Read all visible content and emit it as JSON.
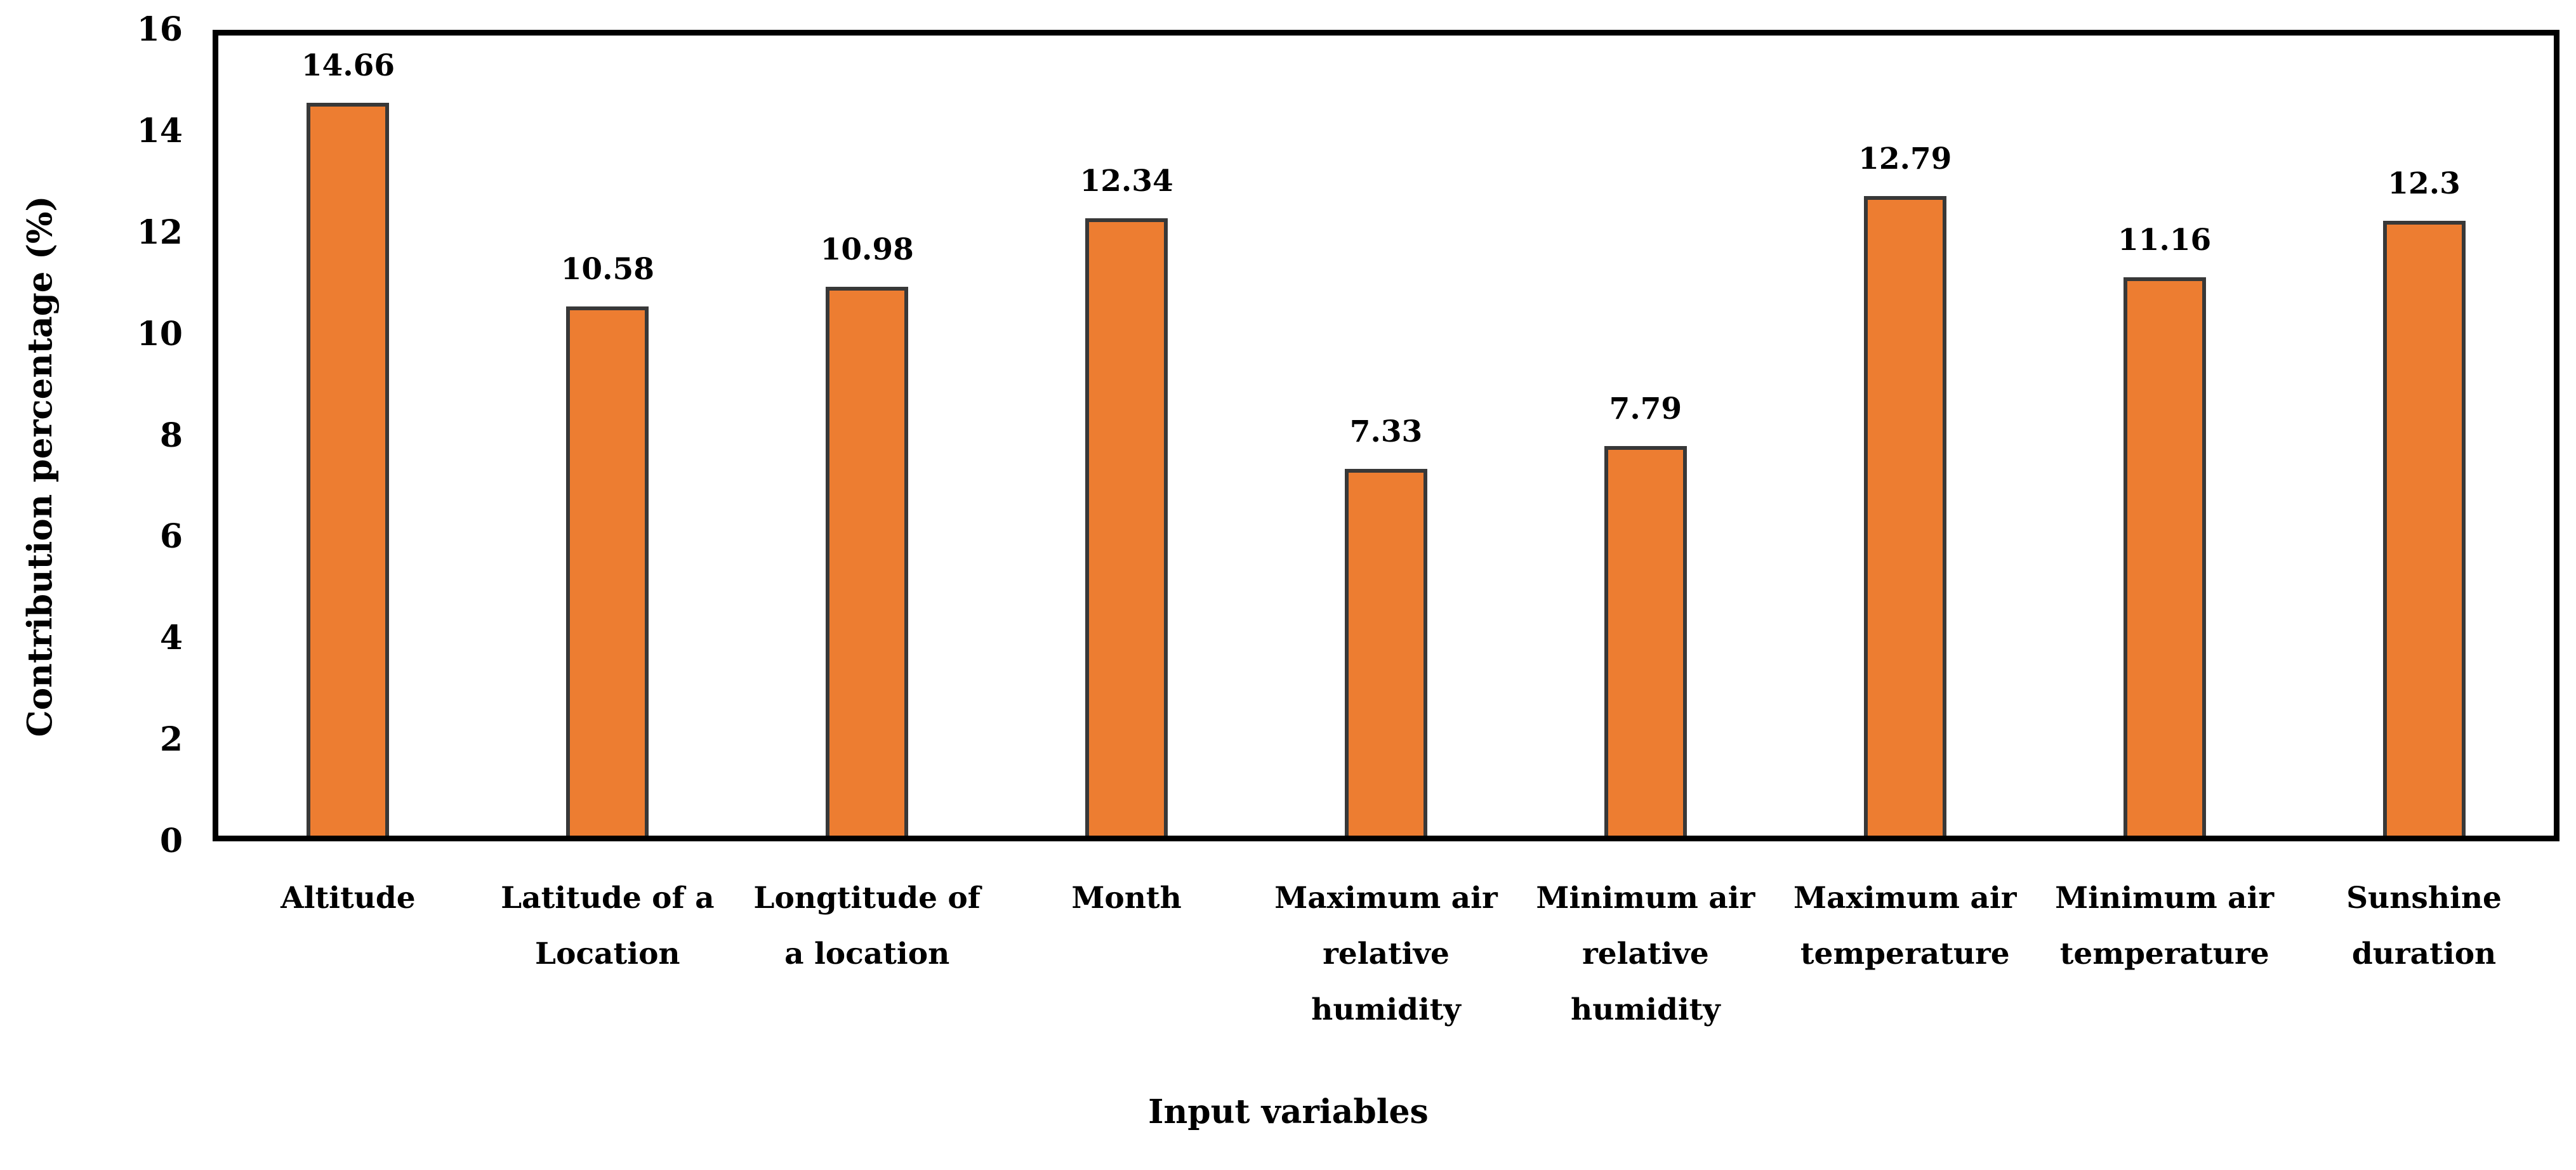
{
  "figure": {
    "background": "#ffffff"
  },
  "chart_data": {
    "type": "bar",
    "title": "",
    "xlabel": "Input variables",
    "ylabel": "Contribution percentage (%)",
    "categories": [
      "Altitude",
      "Latitude of a\nLocation",
      "Longtitude of\na location",
      "Month",
      "Maximum air\nrelative\nhumidity",
      "Minimum air\nrelative\nhumidity",
      "Maximum air\ntemperature",
      "Minimum air\ntemperature",
      "Sunshine\nduration"
    ],
    "values": [
      14.66,
      10.58,
      10.98,
      12.34,
      7.33,
      7.79,
      12.79,
      11.16,
      12.3
    ],
    "value_labels": [
      "14.66",
      "10.58",
      "10.98",
      "12.34",
      "7.33",
      "7.79",
      "12.79",
      "11.16",
      "12.3"
    ],
    "ylim": [
      0,
      16
    ],
    "yticks": [
      "0",
      "2",
      "4",
      "6",
      "8",
      "10",
      "12",
      "14",
      "16"
    ],
    "grid": false,
    "legend": "none",
    "colors": {
      "bar_fill": "#ED7D31",
      "bar_border": "#383838",
      "axis": "#000000",
      "text": "#000000"
    }
  }
}
